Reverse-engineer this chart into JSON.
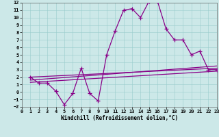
{
  "xlabel": "Windchill (Refroidissement éolien,°C)",
  "background_color": "#cce8e8",
  "line_color": "#880088",
  "xlim": [
    0,
    23
  ],
  "ylim": [
    -2,
    12
  ],
  "xticks": [
    0,
    1,
    2,
    3,
    4,
    5,
    6,
    7,
    8,
    9,
    10,
    11,
    12,
    13,
    14,
    15,
    16,
    17,
    18,
    19,
    20,
    21,
    22,
    23
  ],
  "yticks": [
    -2,
    -1,
    0,
    1,
    2,
    3,
    4,
    5,
    6,
    7,
    8,
    9,
    10,
    11,
    12
  ],
  "main_x": [
    1,
    2,
    3,
    4,
    5,
    6,
    7,
    8,
    9,
    10,
    11,
    12,
    13,
    14,
    15,
    16,
    17,
    18,
    19,
    20,
    21,
    22,
    23
  ],
  "main_y": [
    2.0,
    1.2,
    1.2,
    0.1,
    -1.7,
    -0.2,
    3.2,
    -0.2,
    -1.2,
    5.0,
    8.2,
    11.0,
    11.2,
    10.0,
    12.2,
    12.2,
    8.5,
    7.0,
    7.0,
    5.0,
    5.5,
    3.0,
    3.0
  ],
  "line2_x": [
    1,
    23
  ],
  "line2_y": [
    2.0,
    3.2
  ],
  "line3_x": [
    1,
    23
  ],
  "line3_y": [
    1.6,
    3.5
  ],
  "line4_x": [
    1,
    23
  ],
  "line4_y": [
    1.3,
    2.8
  ]
}
